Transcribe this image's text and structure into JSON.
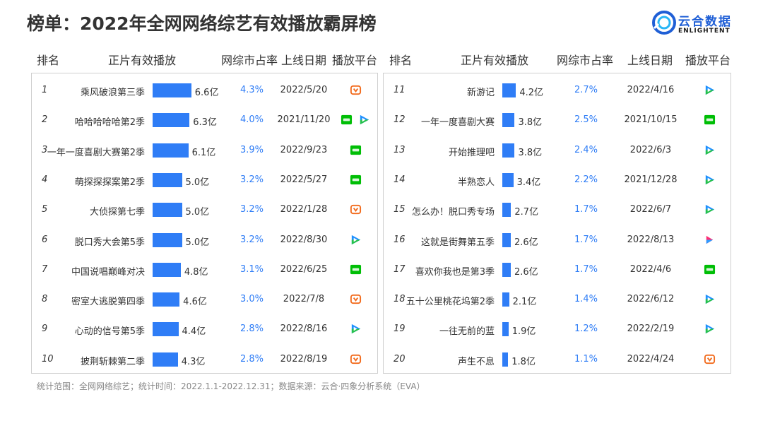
{
  "page_title": "榜单：2022年全网网络综艺有效播放霸屏榜",
  "brand": {
    "name_cn": "云合数据",
    "name_en": "ENLIGHTENT"
  },
  "headers": {
    "rank": "排名",
    "plays": "正片有效播放",
    "share": "网综市占率",
    "date": "上线日期",
    "platform": "播放平台"
  },
  "footer": "统计范围：全网网络综艺；统计时间：2022.1.1-2022.12.31；数据来源：云合·四象分析系统（EVA）",
  "colors": {
    "bar": "#2f7df6",
    "mango": "#f26b1d",
    "iqiyi": "#00be06",
    "tencent_blue": "#1e90ff",
    "tencent_green": "#25c14a",
    "tencent_orange": "#ffae00"
  },
  "chart_data": {
    "type": "bar",
    "x_unit": "亿",
    "rows": [
      {
        "rank": "1",
        "name": "乘风破浪第三季",
        "value": 6.6,
        "value_label": "6.6亿",
        "share": "4.3%",
        "date": "2022/5/20",
        "platforms": [
          "mango-tv-icon"
        ]
      },
      {
        "rank": "2",
        "name": "哈哈哈哈哈第2季",
        "value": 6.3,
        "value_label": "6.3亿",
        "share": "4.0%",
        "date": "2021/11/20",
        "platforms": [
          "iqiyi-icon",
          "tencent-video-icon"
        ]
      },
      {
        "rank": "3",
        "name": "一年一度喜剧大赛第2季",
        "value": 6.1,
        "value_label": "6.1亿",
        "share": "3.9%",
        "date": "2022/9/23",
        "platforms": [
          "iqiyi-icon"
        ]
      },
      {
        "rank": "4",
        "name": "萌探探探案第2季",
        "value": 5.0,
        "value_label": "5.0亿",
        "share": "3.2%",
        "date": "2022/5/27",
        "platforms": [
          "iqiyi-icon"
        ]
      },
      {
        "rank": "5",
        "name": "大侦探第七季",
        "value": 5.0,
        "value_label": "5.0亿",
        "share": "3.2%",
        "date": "2022/1/28",
        "platforms": [
          "mango-tv-icon"
        ]
      },
      {
        "rank": "6",
        "name": "脱口秀大会第5季",
        "value": 5.0,
        "value_label": "5.0亿",
        "share": "3.2%",
        "date": "2022/8/30",
        "platforms": [
          "tencent-video-icon"
        ]
      },
      {
        "rank": "7",
        "name": "中国说唱巅峰对决",
        "value": 4.8,
        "value_label": "4.8亿",
        "share": "3.1%",
        "date": "2022/6/25",
        "platforms": [
          "iqiyi-icon"
        ]
      },
      {
        "rank": "8",
        "name": "密室大逃脱第四季",
        "value": 4.6,
        "value_label": "4.6亿",
        "share": "3.0%",
        "date": "2022/7/8",
        "platforms": [
          "mango-tv-icon"
        ]
      },
      {
        "rank": "9",
        "name": "心动的信号第5季",
        "value": 4.4,
        "value_label": "4.4亿",
        "share": "2.8%",
        "date": "2022/8/16",
        "platforms": [
          "tencent-video-icon"
        ]
      },
      {
        "rank": "10",
        "name": "披荆斩棘第二季",
        "value": 4.3,
        "value_label": "4.3亿",
        "share": "2.8%",
        "date": "2022/8/19",
        "platforms": [
          "mango-tv-icon"
        ]
      },
      {
        "rank": "11",
        "name": "新游记",
        "value": 4.2,
        "value_label": "4.2亿",
        "share": "2.7%",
        "date": "2022/4/16",
        "platforms": [
          "tencent-video-icon"
        ]
      },
      {
        "rank": "12",
        "name": "一年一度喜剧大赛",
        "value": 3.8,
        "value_label": "3.8亿",
        "share": "2.5%",
        "date": "2021/10/15",
        "platforms": [
          "iqiyi-icon"
        ]
      },
      {
        "rank": "13",
        "name": "开始推理吧",
        "value": 3.8,
        "value_label": "3.8亿",
        "share": "2.4%",
        "date": "2022/6/3",
        "platforms": [
          "tencent-video-icon"
        ]
      },
      {
        "rank": "14",
        "name": "半熟恋人",
        "value": 3.4,
        "value_label": "3.4亿",
        "share": "2.2%",
        "date": "2021/12/28",
        "platforms": [
          "tencent-video-icon"
        ]
      },
      {
        "rank": "15",
        "name": "怎么办！脱口秀专场",
        "value": 2.7,
        "value_label": "2.7亿",
        "share": "1.7%",
        "date": "2022/6/7",
        "platforms": [
          "tencent-video-icon"
        ]
      },
      {
        "rank": "16",
        "name": "这就是街舞第五季",
        "value": 2.6,
        "value_label": "2.6亿",
        "share": "1.7%",
        "date": "2022/8/13",
        "platforms": [
          "youku-icon"
        ]
      },
      {
        "rank": "17",
        "name": "喜欢你我也是第3季",
        "value": 2.6,
        "value_label": "2.6亿",
        "share": "1.7%",
        "date": "2022/4/6",
        "platforms": [
          "iqiyi-icon"
        ]
      },
      {
        "rank": "18",
        "name": "五十公里桃花坞第2季",
        "value": 2.1,
        "value_label": "2.1亿",
        "share": "1.4%",
        "date": "2022/6/12",
        "platforms": [
          "tencent-video-icon"
        ]
      },
      {
        "rank": "19",
        "name": "一往无前的蓝",
        "value": 1.9,
        "value_label": "1.9亿",
        "share": "1.2%",
        "date": "2022/2/19",
        "platforms": [
          "tencent-video-icon"
        ]
      },
      {
        "rank": "20",
        "name": "声生不息",
        "value": 1.8,
        "value_label": "1.8亿",
        "share": "1.1%",
        "date": "2022/4/24",
        "platforms": [
          "mango-tv-icon"
        ]
      }
    ]
  }
}
